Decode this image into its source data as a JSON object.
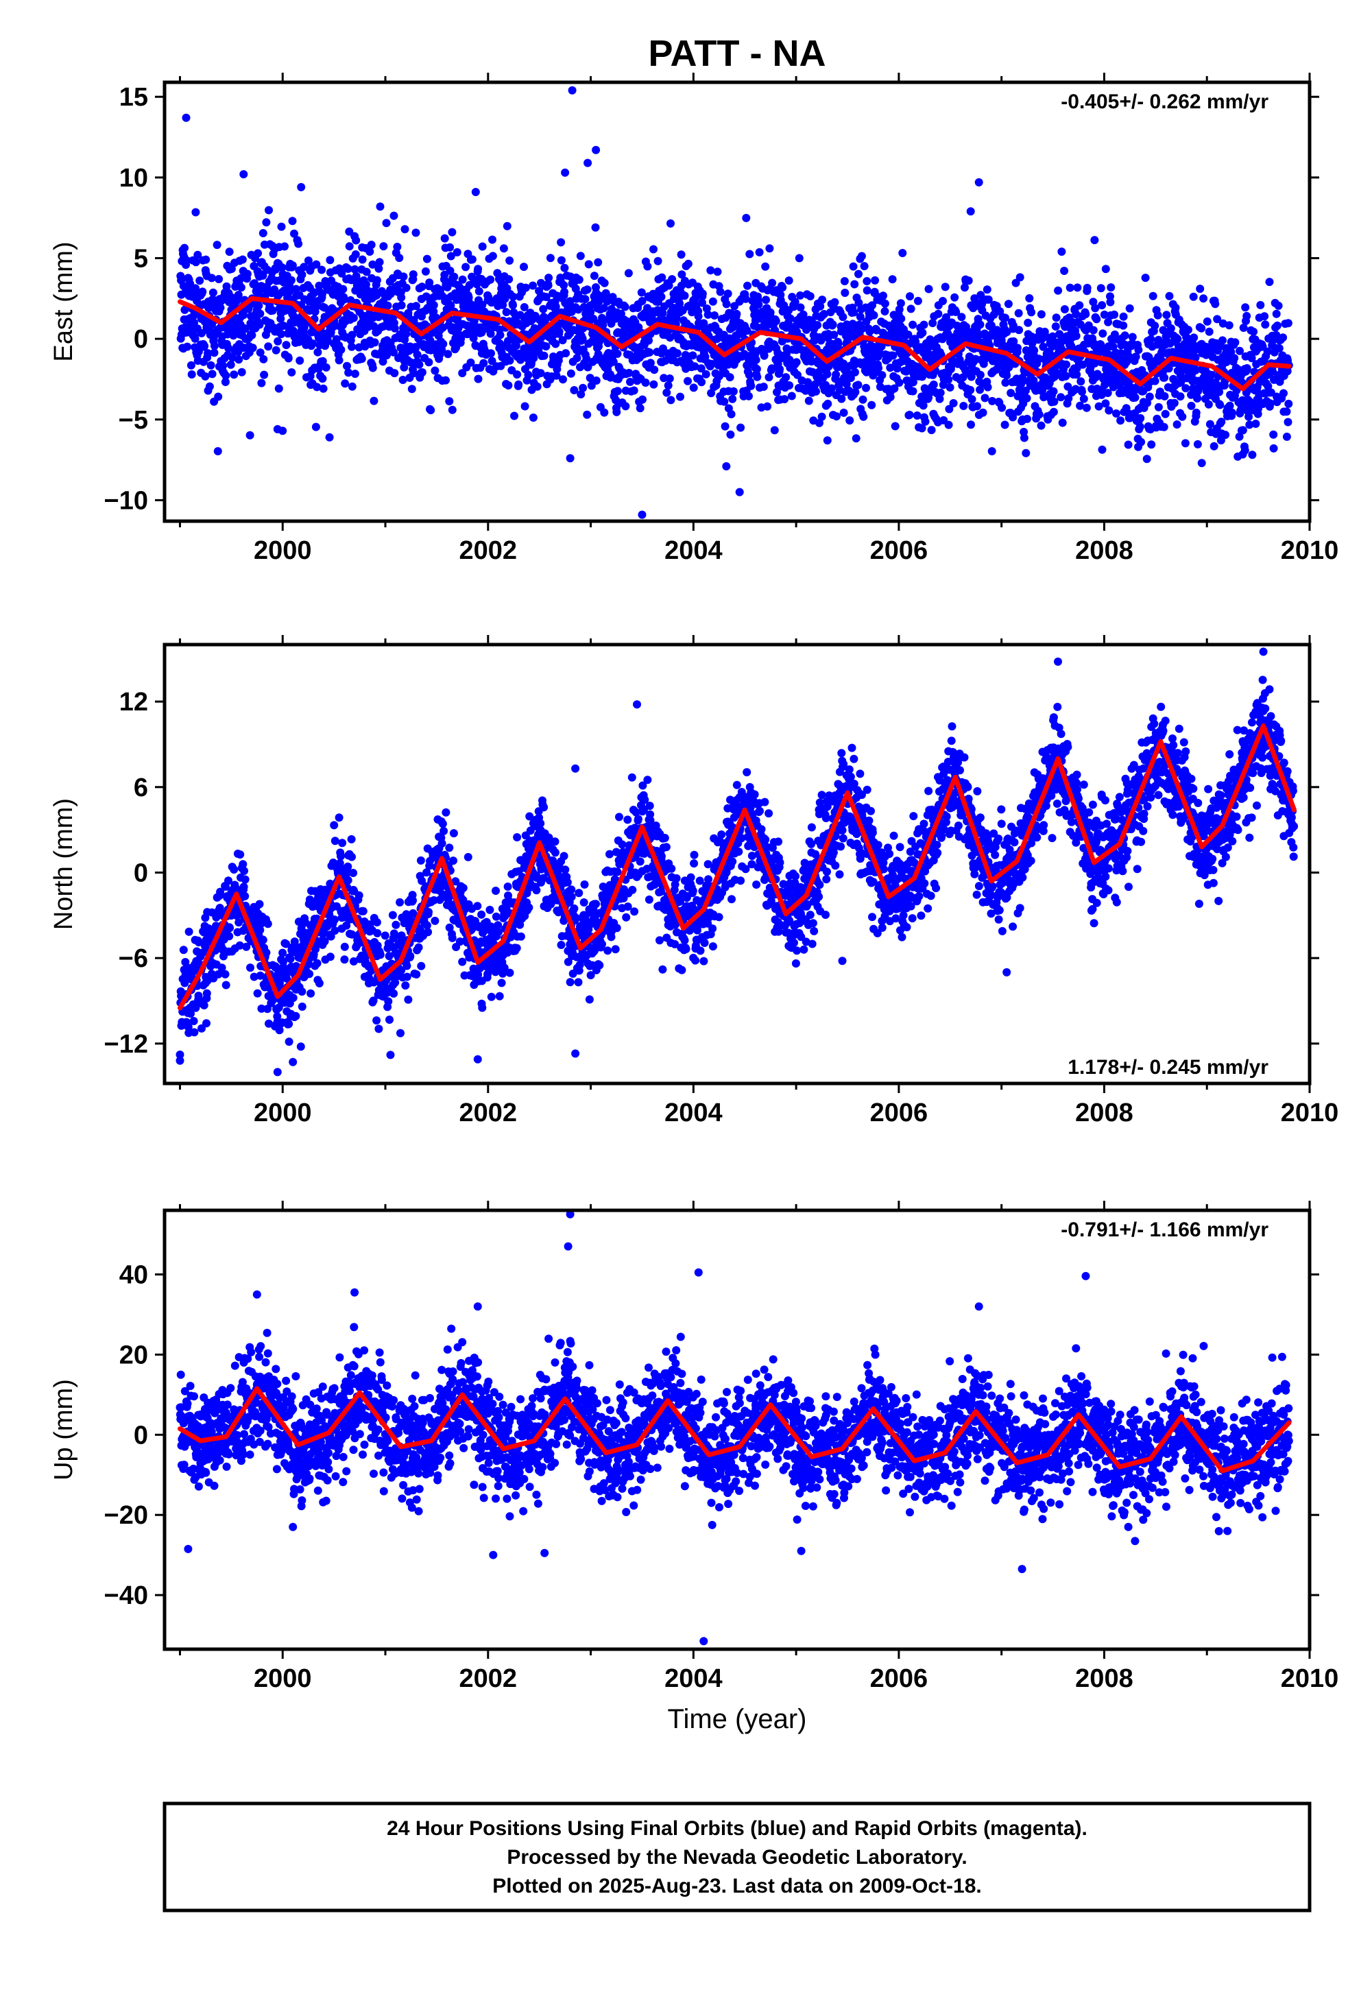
{
  "figure": {
    "title": "PATT - NA",
    "xlabel": "Time (year)",
    "footer": [
      "24 Hour Positions Using Final Orbits (blue) and Rapid Orbits (magenta).",
      "Processed by the Nevada Geodetic Laboratory.",
      "Plotted on 2025-Aug-23. Last data on 2009-Oct-18."
    ]
  },
  "colors": {
    "points": "#0000ff",
    "model": "#ff0000",
    "axes": "#000000"
  },
  "chart_data": [
    {
      "type": "scatter",
      "ylabel": "East (mm)",
      "rate_label": "-0.405+/- 0.262 mm/yr",
      "rate_position": "top-right",
      "xlim": [
        1998.85,
        2010.0
      ],
      "ylim": [
        -11.3,
        15.9
      ],
      "xticks": [
        2000,
        2002,
        2004,
        2006,
        2008,
        2010
      ],
      "yticks": [
        15,
        10,
        5,
        0,
        -5,
        -10
      ],
      "ytick_labels": [
        "15",
        "10",
        "5",
        "0",
        "−5",
        "−10"
      ],
      "data_start": 1999.0,
      "data_end": 2009.8,
      "series": [
        {
          "kind": "points",
          "scatter_sd": 2.0,
          "outliers": [
            [
              1999.06,
              13.7
            ],
            [
              2002.82,
              15.4
            ],
            [
              2003.05,
              11.7
            ],
            [
              2002.97,
              10.9
            ],
            [
              2002.75,
              10.3
            ],
            [
              1999.62,
              10.2
            ],
            [
              2000.18,
              9.4
            ],
            [
              2001.88,
              9.1
            ],
            [
              2006.78,
              9.7
            ],
            [
              2006.7,
              7.9
            ],
            [
              2000.95,
              8.2
            ],
            [
              2003.5,
              -10.9
            ],
            [
              2004.45,
              -9.5
            ],
            [
              2004.32,
              -7.9
            ],
            [
              2002.8,
              -7.4
            ],
            [
              2008.95,
              -7.7
            ],
            [
              2009.3,
              -7.3
            ],
            [
              2000.0,
              -5.7
            ],
            [
              1999.95,
              -5.6
            ]
          ]
        },
        {
          "kind": "model",
          "nodes": [
            [
              1999.0,
              2.3
            ],
            [
              1999.15,
              1.9
            ],
            [
              1999.4,
              1.0
            ],
            [
              1999.7,
              2.5
            ],
            [
              2000.1,
              2.2
            ],
            [
              2000.35,
              0.6
            ],
            [
              2000.65,
              2.1
            ],
            [
              2001.1,
              1.6
            ],
            [
              2001.35,
              0.3
            ],
            [
              2001.65,
              1.6
            ],
            [
              2002.1,
              1.2
            ],
            [
              2002.4,
              -0.2
            ],
            [
              2002.7,
              1.4
            ],
            [
              2003.05,
              0.7
            ],
            [
              2003.3,
              -0.5
            ],
            [
              2003.65,
              0.9
            ],
            [
              2004.05,
              0.4
            ],
            [
              2004.3,
              -1.0
            ],
            [
              2004.65,
              0.4
            ],
            [
              2005.05,
              0.0
            ],
            [
              2005.3,
              -1.4
            ],
            [
              2005.65,
              0.1
            ],
            [
              2006.05,
              -0.4
            ],
            [
              2006.3,
              -1.9
            ],
            [
              2006.65,
              -0.3
            ],
            [
              2007.05,
              -0.9
            ],
            [
              2007.35,
              -2.2
            ],
            [
              2007.65,
              -0.8
            ],
            [
              2008.05,
              -1.3
            ],
            [
              2008.35,
              -2.8
            ],
            [
              2008.65,
              -1.2
            ],
            [
              2009.05,
              -1.7
            ],
            [
              2009.35,
              -3.1
            ],
            [
              2009.6,
              -1.6
            ],
            [
              2009.8,
              -1.7
            ]
          ]
        }
      ]
    },
    {
      "type": "scatter",
      "ylabel": "North (mm)",
      "rate_label": "1.178+/- 0.245 mm/yr",
      "rate_position": "bottom-right",
      "xlim": [
        1998.85,
        2010.0
      ],
      "ylim": [
        -14.8,
        16.0
      ],
      "xticks": [
        2000,
        2002,
        2004,
        2006,
        2008,
        2010
      ],
      "yticks": [
        12,
        6,
        0,
        -6,
        -12
      ],
      "ytick_labels": [
        "12",
        "6",
        "0",
        "−6",
        "−12"
      ],
      "data_start": 1999.0,
      "data_end": 2009.85,
      "series": [
        {
          "kind": "points",
          "scatter_sd": 1.6,
          "outliers": [
            [
              2003.45,
              11.8
            ],
            [
              2002.85,
              7.3
            ],
            [
              2009.55,
              15.5
            ],
            [
              2007.55,
              14.8
            ],
            [
              1999.0,
              -13.2
            ],
            [
              1999.95,
              -14.0
            ],
            [
              2000.1,
              -13.3
            ],
            [
              2001.05,
              -12.8
            ],
            [
              2001.9,
              -13.1
            ],
            [
              2002.85,
              -12.7
            ],
            [
              2007.05,
              -7.0
            ],
            [
              2005.45,
              -6.2
            ],
            [
              2003.7,
              -6.8
            ]
          ]
        },
        {
          "kind": "model",
          "nodes": [
            [
              1999.0,
              -9.5
            ],
            [
              1999.2,
              -7.0
            ],
            [
              1999.55,
              -1.5
            ],
            [
              1999.95,
              -8.7
            ],
            [
              2000.15,
              -7.2
            ],
            [
              2000.55,
              -0.3
            ],
            [
              2000.95,
              -7.5
            ],
            [
              2001.15,
              -6.2
            ],
            [
              2001.55,
              1.0
            ],
            [
              2001.9,
              -6.3
            ],
            [
              2002.15,
              -4.8
            ],
            [
              2002.5,
              2.1
            ],
            [
              2002.9,
              -5.3
            ],
            [
              2003.1,
              -4.0
            ],
            [
              2003.5,
              3.2
            ],
            [
              2003.9,
              -3.9
            ],
            [
              2004.1,
              -2.6
            ],
            [
              2004.5,
              4.4
            ],
            [
              2004.9,
              -2.9
            ],
            [
              2005.1,
              -1.6
            ],
            [
              2005.5,
              5.6
            ],
            [
              2005.9,
              -1.7
            ],
            [
              2006.15,
              -0.4
            ],
            [
              2006.55,
              6.7
            ],
            [
              2006.9,
              -0.6
            ],
            [
              2007.15,
              0.8
            ],
            [
              2007.55,
              8.0
            ],
            [
              2007.9,
              0.7
            ],
            [
              2008.15,
              2.0
            ],
            [
              2008.55,
              9.2
            ],
            [
              2008.95,
              1.8
            ],
            [
              2009.15,
              3.3
            ],
            [
              2009.55,
              10.3
            ],
            [
              2009.85,
              4.4
            ]
          ]
        }
      ]
    },
    {
      "type": "scatter",
      "ylabel": "Up (mm)",
      "rate_label": "-0.791+/- 1.166 mm/yr",
      "rate_position": "top-right",
      "xlim": [
        1998.85,
        2010.0
      ],
      "ylim": [
        -53.5,
        56.0
      ],
      "xticks": [
        2000,
        2002,
        2004,
        2006,
        2008,
        2010
      ],
      "yticks": [
        40,
        20,
        0,
        -20,
        -40
      ],
      "ytick_labels": [
        "40",
        "20",
        "0",
        "−20",
        "−40"
      ],
      "data_start": 1999.0,
      "data_end": 2009.8,
      "series": [
        {
          "kind": "points",
          "scatter_sd": 6.5,
          "outliers": [
            [
              2002.8,
              55.0
            ],
            [
              2002.78,
              47.0
            ],
            [
              2004.05,
              40.5
            ],
            [
              2007.82,
              39.6
            ],
            [
              1999.75,
              35.0
            ],
            [
              2000.7,
              35.5
            ],
            [
              2001.9,
              32.0
            ],
            [
              2006.78,
              32.0
            ],
            [
              2004.1,
              -51.5
            ],
            [
              2007.2,
              -33.5
            ],
            [
              1999.08,
              -28.5
            ],
            [
              2002.05,
              -30.0
            ],
            [
              2002.55,
              -29.5
            ],
            [
              2005.05,
              -29.0
            ],
            [
              2008.3,
              -26.5
            ],
            [
              2009.2,
              -24.0
            ],
            [
              2000.1,
              -23.0
            ]
          ]
        },
        {
          "kind": "model",
          "nodes": [
            [
              1999.0,
              1.5
            ],
            [
              1999.2,
              -1.5
            ],
            [
              1999.45,
              -0.5
            ],
            [
              1999.75,
              11.5
            ],
            [
              2000.15,
              -2.5
            ],
            [
              2000.45,
              0.5
            ],
            [
              2000.75,
              10.5
            ],
            [
              2001.15,
              -3.0
            ],
            [
              2001.45,
              -1.5
            ],
            [
              2001.75,
              10.0
            ],
            [
              2002.15,
              -3.5
            ],
            [
              2002.45,
              -1.5
            ],
            [
              2002.75,
              9.0
            ],
            [
              2003.15,
              -4.5
            ],
            [
              2003.45,
              -2.5
            ],
            [
              2003.75,
              8.5
            ],
            [
              2004.15,
              -5.0
            ],
            [
              2004.45,
              -3.0
            ],
            [
              2004.75,
              7.5
            ],
            [
              2005.15,
              -5.5
            ],
            [
              2005.45,
              -3.5
            ],
            [
              2005.75,
              6.5
            ],
            [
              2006.15,
              -6.5
            ],
            [
              2006.45,
              -4.5
            ],
            [
              2006.75,
              5.8
            ],
            [
              2007.15,
              -7.0
            ],
            [
              2007.45,
              -5.0
            ],
            [
              2007.75,
              5.0
            ],
            [
              2008.15,
              -8.0
            ],
            [
              2008.45,
              -6.0
            ],
            [
              2008.75,
              4.5
            ],
            [
              2009.15,
              -9.0
            ],
            [
              2009.45,
              -6.5
            ],
            [
              2009.8,
              3.0
            ]
          ]
        }
      ]
    }
  ]
}
